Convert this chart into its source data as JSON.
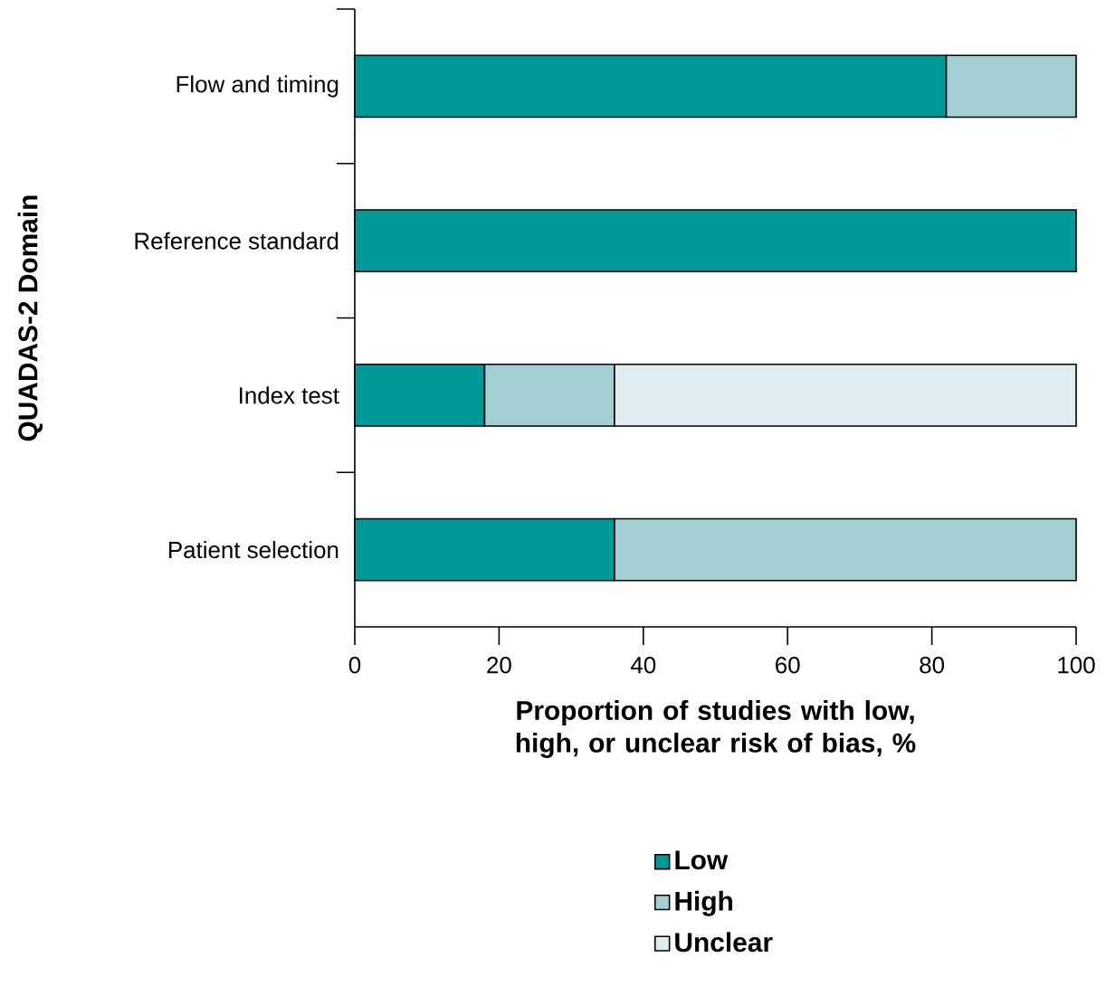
{
  "chart_data": {
    "type": "bar",
    "orientation": "horizontal",
    "stacked": true,
    "categories": [
      "Flow and timing",
      "Reference standard",
      "Index test",
      "Patient selection"
    ],
    "series": [
      {
        "name": "Low",
        "color": "#009999",
        "values": [
          82,
          100,
          18,
          36
        ]
      },
      {
        "name": "High",
        "color": "#a3cfd3",
        "values": [
          18,
          null,
          18,
          64
        ]
      },
      {
        "name": "Unclear",
        "color": "#ddedf0",
        "values": [
          null,
          null,
          64,
          null
        ]
      }
    ],
    "xlabel": "Proportion of studies with low, high, or unclear risk of bias, %",
    "ylabel": "QUADAS-2 Domain",
    "xlim": [
      0,
      100
    ],
    "xticks": [
      0,
      20,
      40,
      60,
      80,
      100
    ],
    "legend": "bottom"
  }
}
